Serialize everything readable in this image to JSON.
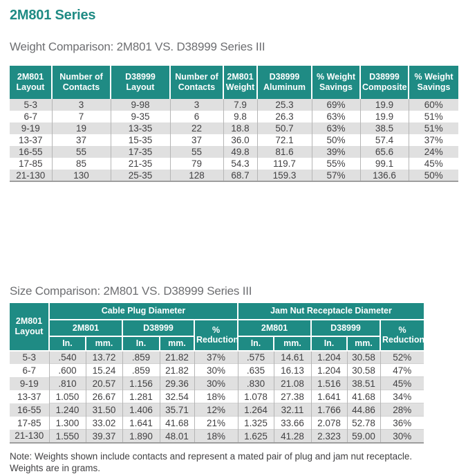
{
  "page": {
    "title": "2M801 Series"
  },
  "colors": {
    "teal": "#1f8b84",
    "row_stripe": "#e0e0e0",
    "body_text": "#414042",
    "subtitle_text": "#6d6e71"
  },
  "weight_table": {
    "title": "Weight Comparison: 2M801 VS. D38999 Series III",
    "headers": [
      "2M801 Layout",
      "Number of Contacts",
      "D38999 Layout",
      "Number of Contacts",
      "2M801 Weight",
      "D38999 Aluminum",
      "% Weight Savings",
      "D38999 Composite",
      "% Weight Savings"
    ],
    "rows": [
      [
        "5-3",
        "3",
        "9-98",
        "3",
        "7.9",
        "25.3",
        "69%",
        "19.9",
        "60%"
      ],
      [
        "6-7",
        "7",
        "9-35",
        "6",
        "9.8",
        "26.3",
        "63%",
        "19.9",
        "51%"
      ],
      [
        "9-19",
        "19",
        "13-35",
        "22",
        "18.8",
        "50.7",
        "63%",
        "38.5",
        "51%"
      ],
      [
        "13-37",
        "37",
        "15-35",
        "37",
        "36.0",
        "72.1",
        "50%",
        "57.4",
        "37%"
      ],
      [
        "16-55",
        "55",
        "17-35",
        "55",
        "49.8",
        "81.6",
        "39%",
        "65.6",
        "24%"
      ],
      [
        "17-85",
        "85",
        "21-35",
        "79",
        "54.3",
        "119.7",
        "55%",
        "99.1",
        "45%"
      ],
      [
        "21-130",
        "130",
        "25-35",
        "128",
        "68.7",
        "159.3",
        "57%",
        "136.6",
        "50%"
      ]
    ]
  },
  "size_table": {
    "title": "Size Comparison: 2M801 VS. D38999 Series III",
    "layout_header": "2M801 Layout",
    "group_cable": "Cable Plug Diameter",
    "group_jamnut": "Jam Nut Receptacle Diameter",
    "sub_2m801": "2M801",
    "sub_d38999": "D38999",
    "pct_reduction": "% Reduction",
    "unit_in": "In.",
    "unit_mm": "mm.",
    "rows": [
      [
        "5-3",
        ".540",
        "13.72",
        ".859",
        "21.82",
        "37%",
        ".575",
        "14.61",
        "1.204",
        "30.58",
        "52%"
      ],
      [
        "6-7",
        ".600",
        "15.24",
        ".859",
        "21.82",
        "30%",
        ".635",
        "16.13",
        "1.204",
        "30.58",
        "47%"
      ],
      [
        "9-19",
        ".810",
        "20.57",
        "1.156",
        "29.36",
        "30%",
        ".830",
        "21.08",
        "1.516",
        "38.51",
        "45%"
      ],
      [
        "13-37",
        "1.050",
        "26.67",
        "1.281",
        "32.54",
        "18%",
        "1.078",
        "27.38",
        "1.641",
        "41.68",
        "34%"
      ],
      [
        "16-55",
        "1.240",
        "31.50",
        "1.406",
        "35.71",
        "12%",
        "1.264",
        "32.11",
        "1.766",
        "44.86",
        "28%"
      ],
      [
        "17-85",
        "1.300",
        "33.02",
        "1.641",
        "41.68",
        "21%",
        "1.325",
        "33.66",
        "2.078",
        "52.78",
        "36%"
      ],
      [
        "21-130",
        "1.550",
        "39.37",
        "1.890",
        "48.01",
        "18%",
        "1.625",
        "41.28",
        "2.323",
        "59.00",
        "30%"
      ]
    ]
  },
  "note": {
    "line1": "Note: Weights shown include contacts and represent a mated pair of plug and jam nut receptacle.",
    "line2": "Weights are in grams."
  }
}
